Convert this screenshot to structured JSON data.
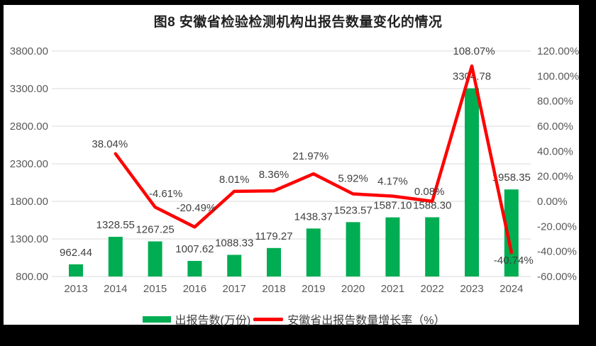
{
  "title": "图8  安徽省检验检测机构出报告数量变化的情况",
  "colors": {
    "bar": "#00AD52",
    "line": "#FF0000",
    "grid": "#D9D9D9",
    "axis_text": "#595959",
    "data_label": "#404040",
    "title_text": "#1F1F1F",
    "frame": "#000000",
    "background": "#FFFFFF"
  },
  "legend": {
    "items": [
      {
        "label": "出报告数(万份)",
        "swatch": "bar"
      },
      {
        "label": "安徽省出报告数量增长率（%）",
        "swatch": "line"
      }
    ]
  },
  "chart_data": {
    "type": "bar+line",
    "title": "图8  安徽省检验检测机构出报告数量变化的情况",
    "categories": [
      "2013",
      "2014",
      "2015",
      "2016",
      "2017",
      "2018",
      "2019",
      "2020",
      "2021",
      "2022",
      "2023",
      "2024"
    ],
    "series": [
      {
        "name": "出报告数(万份)",
        "type": "bar",
        "axis": "left",
        "color": "#00AD52",
        "values": [
          962.44,
          1328.55,
          1267.25,
          1007.62,
          1088.33,
          1179.27,
          1438.37,
          1523.57,
          1587.1,
          1588.3,
          3304.78,
          1958.35
        ],
        "labels": [
          "962.44",
          "1328.55",
          "1267.25",
          "1007.62",
          "1088.33",
          "1179.27",
          "1438.37",
          "1523.57",
          "1587.10",
          "1588.30",
          "3304.78",
          "1958.35"
        ]
      },
      {
        "name": "安徽省出报告数量增长率（%）",
        "type": "line",
        "axis": "right",
        "color": "#FF0000",
        "values": [
          null,
          38.04,
          -4.61,
          -20.49,
          8.01,
          8.36,
          21.97,
          5.92,
          4.17,
          0.08,
          108.07,
          -40.74
        ],
        "labels": [
          null,
          "38.04%",
          "-4.61%",
          "-20.49%",
          "8.01%",
          "8.36%",
          "21.97%",
          "5.92%",
          "4.17%",
          "0.08%",
          "108.07%",
          "-40.74%"
        ]
      }
    ],
    "left_axis": {
      "min": 800,
      "max": 3800,
      "step": 500,
      "ticks": [
        "3800.00",
        "3300.00",
        "2800.00",
        "2300.00",
        "1800.00",
        "1300.00",
        "800.00"
      ]
    },
    "right_axis": {
      "min": -60,
      "max": 120,
      "step": 20,
      "ticks": [
        "120.00%",
        "100.00%",
        "80.00%",
        "60.00%",
        "40.00%",
        "20.00%",
        "0.00%",
        "-20.00%",
        "-40.00%",
        "-60.00%"
      ]
    },
    "grid": true,
    "legend_position": "bottom"
  }
}
